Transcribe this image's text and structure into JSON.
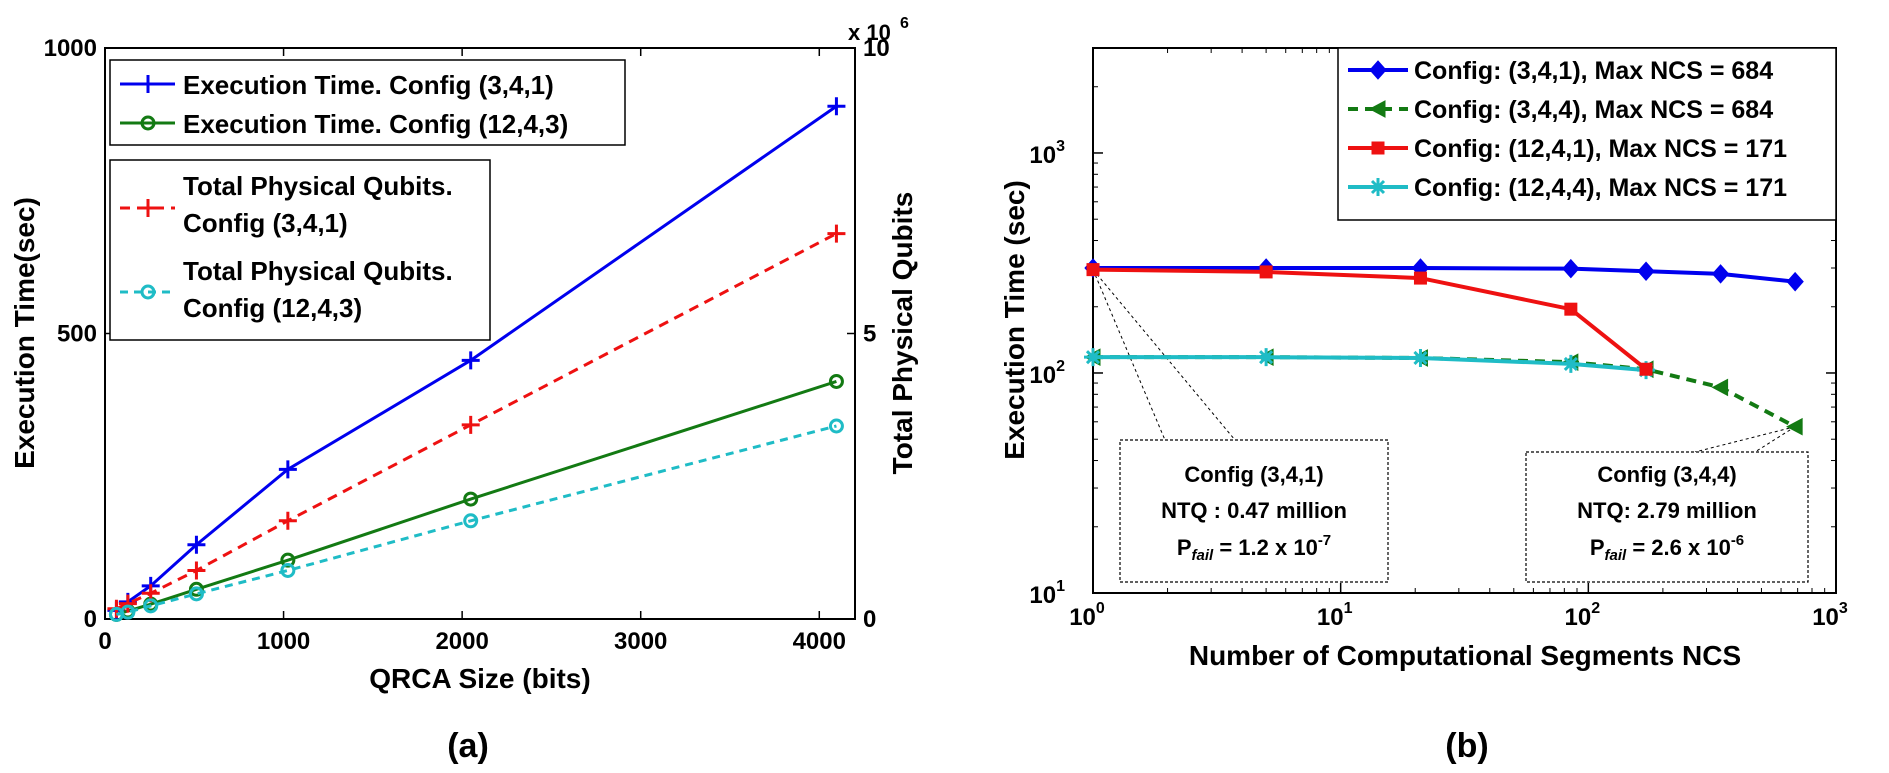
{
  "chart_data": [
    {
      "type": "line",
      "panel_label": "(a)",
      "xlabel": "QRCA Size (bits)",
      "ylabel": "Execution Time(sec)",
      "ylabel_right": "Total Physical Qubits",
      "right_axis_multiplier": "x 10",
      "right_axis_exponent": "6",
      "xlim": [
        0,
        4200
      ],
      "ylim": [
        0,
        1000
      ],
      "ylim_right": [
        0,
        10
      ],
      "xticks": [
        0,
        1000,
        2000,
        3000,
        4000
      ],
      "yticks": [
        0,
        500,
        1000
      ],
      "yticks_right": [
        0,
        5,
        10
      ],
      "series": [
        {
          "name": "Execution Time. Config (3,4,1)",
          "axis": "left",
          "color": "#0000ee",
          "dash": "",
          "marker": "plus",
          "x": [
            64,
            128,
            256,
            512,
            1024,
            2048,
            4096
          ],
          "values": [
            15,
            30,
            58,
            130,
            262,
            453,
            898
          ]
        },
        {
          "name": "Execution Time. Config (12,4,3)",
          "axis": "left",
          "color": "#137a13",
          "dash": "",
          "marker": "circle",
          "x": [
            64,
            128,
            256,
            512,
            1024,
            2048,
            4096
          ],
          "values": [
            8,
            14,
            26,
            52,
            103,
            210,
            416
          ]
        },
        {
          "name": "Total Physical Qubits. Config (3,4,1)",
          "axis": "right",
          "color": "#ee1111",
          "dash": "10,7",
          "marker": "plus",
          "x": [
            64,
            128,
            256,
            512,
            1024,
            2048,
            4096
          ],
          "values": [
            0.18,
            0.27,
            0.45,
            0.85,
            1.72,
            3.4,
            6.75
          ]
        },
        {
          "name": "Total Physical Qubits. Config (12,4,3)",
          "axis": "right",
          "color": "#1fbcc6",
          "dash": "8,6",
          "marker": "circle",
          "x": [
            64,
            128,
            256,
            512,
            1024,
            2048,
            4096
          ],
          "values": [
            0.08,
            0.12,
            0.23,
            0.44,
            0.85,
            1.72,
            3.38
          ]
        }
      ],
      "legend_box1": [
        "Execution Time. Config (3,4,1)",
        "Execution Time. Config (12,4,3)"
      ],
      "legend_box2": [
        [
          "Total Physical Qubits.",
          "Config (3,4,1)"
        ],
        [
          "Total Physical Qubits.",
          "Config (12,4,3)"
        ]
      ]
    },
    {
      "type": "line",
      "panel_label": "(b)",
      "xscale": "log",
      "yscale": "log",
      "xlabel": "Number of Computational Segments NCS",
      "ylabel": "Execution Time (sec)",
      "xlim": [
        1,
        1000
      ],
      "ylim": [
        10,
        3000
      ],
      "xtick_bases": [
        "10",
        "10",
        "10",
        "10"
      ],
      "xtick_exps": [
        "0",
        "1",
        "2",
        "3"
      ],
      "ytick_bases": [
        "10",
        "10",
        "10"
      ],
      "ytick_exps": [
        "1",
        "2",
        "3"
      ],
      "series": [
        {
          "name": "Config: (3,4,1), Max NCS = 684",
          "color": "#0000ee",
          "dash": "",
          "marker": "diamond",
          "x": [
            1,
            5,
            21,
            85,
            171,
            342,
            684
          ],
          "values": [
            300,
            300,
            300,
            298,
            290,
            282,
            260
          ]
        },
        {
          "name": "Config: (3,4,4), Max NCS = 684",
          "color": "#137a13",
          "dash": "10,7",
          "marker": "triangle-left",
          "x": [
            1,
            5,
            21,
            85,
            171,
            342,
            684
          ],
          "values": [
            118,
            118,
            117,
            112,
            104,
            86,
            57
          ]
        },
        {
          "name": "Config: (12,4,1), Max NCS = 171",
          "color": "#ee1111",
          "dash": "",
          "marker": "square",
          "x": [
            1,
            5,
            21,
            85,
            171
          ],
          "values": [
            295,
            288,
            270,
            195,
            104
          ]
        },
        {
          "name": "Config: (12,4,4), Max NCS = 171",
          "color": "#1fbcc6",
          "dash": "",
          "marker": "star",
          "x": [
            1,
            5,
            21,
            85,
            171
          ],
          "values": [
            118,
            118,
            117,
            110,
            103
          ]
        }
      ],
      "annotations": [
        {
          "title": "Config (3,4,1)",
          "ntq": "NTQ : 0.47 million",
          "pfail_prefix": "P",
          "pfail_sub": "fail",
          "pfail_value": " = 1.2 x 10",
          "pfail_exp": "-7"
        },
        {
          "title": "Config (3,4,4)",
          "ntq": "NTQ: 2.79 million",
          "pfail_prefix": "P",
          "pfail_sub": "fail",
          "pfail_value": " = 2.6 x 10",
          "pfail_exp": "-6"
        }
      ]
    }
  ]
}
